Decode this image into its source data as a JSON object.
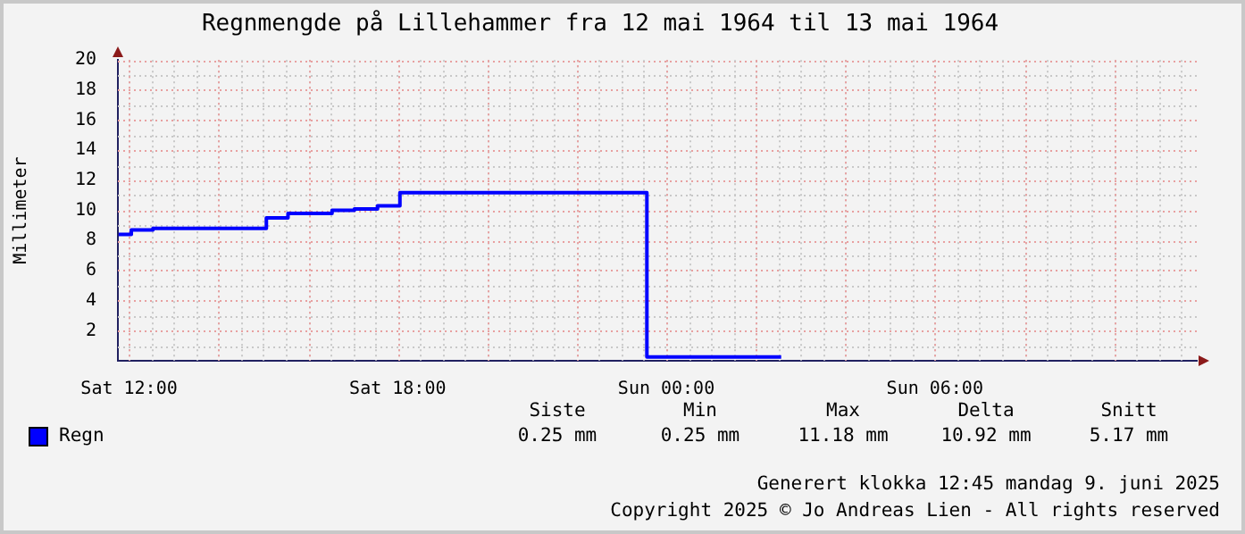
{
  "chart_data": {
    "type": "step",
    "title": "Regnmengde på Lillehammer fra 12 mai 1964 til 13 mai 1964",
    "ylabel": "Millimeter",
    "x": [
      "1964-05-12T11:46",
      "1964-05-12T12:03",
      "1964-05-12T12:32",
      "1964-05-12T15:04",
      "1964-05-12T15:33",
      "1964-05-12T16:32",
      "1964-05-12T17:02",
      "1964-05-12T17:33",
      "1964-05-12T18:03",
      "1964-05-12T23:34",
      "1964-05-13T02:34"
    ],
    "series": [
      {
        "name": "Regn",
        "color": "#0000ff",
        "values": [
          8.4,
          8.7,
          8.8,
          9.5,
          9.8,
          10.0,
          10.1,
          10.3,
          11.18,
          0.25,
          0.25
        ]
      }
    ],
    "xlim": [
      "1964-05-12T11:45",
      "1964-05-13T11:51"
    ],
    "xticks": [
      {
        "value": "1964-05-12T12:00",
        "label": "Sat 12:00"
      },
      {
        "value": "1964-05-12T14:00",
        "label": null
      },
      {
        "value": "1964-05-12T16:00",
        "label": null
      },
      {
        "value": "1964-05-12T18:00",
        "label": "Sat 18:00"
      },
      {
        "value": "1964-05-12T20:00",
        "label": null
      },
      {
        "value": "1964-05-12T22:00",
        "label": null
      },
      {
        "value": "1964-05-13T00:00",
        "label": "Sun 00:00"
      },
      {
        "value": "1964-05-13T02:00",
        "label": null
      },
      {
        "value": "1964-05-13T04:00",
        "label": null
      },
      {
        "value": "1964-05-13T06:00",
        "label": "Sun 06:00"
      },
      {
        "value": "1964-05-13T08:00",
        "label": null
      },
      {
        "value": "1964-05-13T10:00",
        "label": null
      }
    ],
    "ylim": [
      0,
      20
    ],
    "yticks": [
      2,
      4,
      6,
      8,
      10,
      12,
      14,
      16,
      18,
      20
    ],
    "grid": true,
    "legend": "bottom left",
    "annotations": [
      "Siste",
      "Min",
      "Max",
      "Delta",
      "Snitt",
      "0.25 mm",
      "0.25 mm",
      "11.18 mm",
      "10.92 mm",
      "5.17 mm",
      "Generert klokka 12:45 mandag 9. juni 2025",
      "Copyright 2025 © Jo Andreas Lien - All rights reserved"
    ]
  }
}
